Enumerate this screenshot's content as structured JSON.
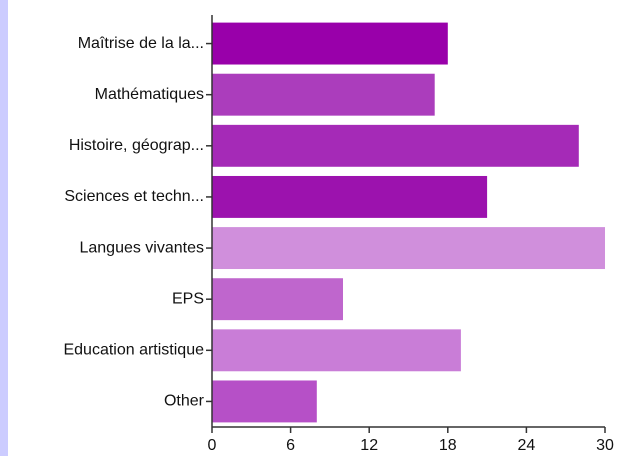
{
  "chart_data": {
    "type": "barh",
    "categories": [
      "Maîtrise de la la...",
      "Mathématiques",
      "Histoire, géograp...",
      "Sciences et techn...",
      "Langues vivantes",
      "EPS",
      "Education artistique",
      "Other"
    ],
    "values": [
      18,
      17,
      28,
      21,
      30,
      10,
      19,
      8
    ],
    "colors": [
      "#9900aa",
      "#ab3dbc",
      "#a52ab7",
      "#9c12ae",
      "#d08fdc",
      "#bf66cd",
      "#c97dd7",
      "#b650c7"
    ],
    "xlim": [
      0,
      30
    ],
    "xticks": [
      0,
      6,
      12,
      18,
      24,
      30
    ]
  }
}
